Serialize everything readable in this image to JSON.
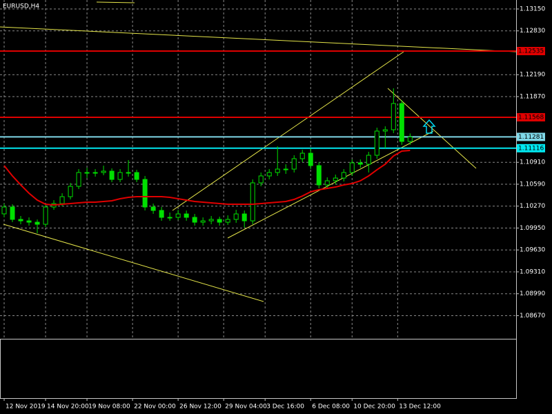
{
  "chart_data": {
    "type": "candlestick",
    "title": "EURUSD,H4",
    "open": [
      1.10157,
      1.10257,
      1.10076,
      1.10055,
      1.10035,
      1.10005,
      1.10257,
      1.10307,
      1.10408,
      1.10559,
      1.10761,
      1.10761,
      1.10761,
      1.10781,
      1.1066,
      1.10761,
      1.10761,
      1.1066,
      1.10257,
      1.10207,
      1.10106,
      1.10106,
      1.10156,
      1.10106,
      1.10035,
      1.10055,
      1.10076,
      1.10035,
      1.10076,
      1.10156,
      1.10055,
      1.1061,
      1.10711,
      1.10761,
      1.10811,
      1.10811,
      1.10963,
      1.11043,
      1.10862,
      1.1058,
      1.1064,
      1.1068,
      1.10761,
      1.10902,
      1.10882,
      1.11013,
      1.11366,
      1.11386,
      1.11769,
      1.11215
    ],
    "high": [
      1.10307,
      1.10297,
      1.10126,
      1.10105,
      1.10075,
      1.10297,
      1.10357,
      1.10458,
      1.10609,
      1.10811,
      1.10831,
      1.10811,
      1.10861,
      1.10821,
      1.10811,
      1.10943,
      1.10801,
      1.1071,
      1.10307,
      1.10257,
      1.10176,
      1.10216,
      1.10206,
      1.10156,
      1.10105,
      1.10126,
      1.10116,
      1.10136,
      1.10216,
      1.10206,
      1.1066,
      1.10761,
      1.10811,
      1.11144,
      1.10881,
      1.11013,
      1.11093,
      1.11114,
      1.10912,
      1.1069,
      1.1073,
      1.10811,
      1.10952,
      1.10952,
      1.11063,
      1.11416,
      1.11436,
      1.11991,
      1.11819,
      1.11331
    ],
    "low": [
      1.10107,
      1.10036,
      1.10005,
      1.09985,
      1.09874,
      1.09965,
      1.10217,
      1.10267,
      1.10368,
      1.10519,
      1.10681,
      1.10701,
      1.10721,
      1.1062,
      1.1062,
      1.10701,
      1.1062,
      1.10207,
      1.10157,
      1.10056,
      1.10056,
      1.10066,
      1.10056,
      1.09985,
      1.09985,
      1.10005,
      1.09985,
      1.09995,
      1.10026,
      1.09955,
      1.10005,
      1.1056,
      1.10661,
      1.10711,
      1.10741,
      1.10761,
      1.10913,
      1.10812,
      1.1053,
      1.1053,
      1.1059,
      1.1063,
      1.10711,
      1.10832,
      1.10762,
      1.10963,
      1.11116,
      1.11336,
      1.11165,
      1.11165
    ],
    "close": [
      1.10257,
      1.10076,
      1.10055,
      1.10035,
      1.10005,
      1.10257,
      1.10307,
      1.10408,
      1.10559,
      1.10761,
      1.10761,
      1.10761,
      1.10781,
      1.1066,
      1.10761,
      1.10761,
      1.1066,
      1.10257,
      1.10207,
      1.10106,
      1.10106,
      1.10156,
      1.10106,
      1.10035,
      1.10055,
      1.10076,
      1.10035,
      1.10076,
      1.10156,
      1.10055,
      1.1061,
      1.10711,
      1.10761,
      1.10811,
      1.10811,
      1.10963,
      1.11043,
      1.10862,
      1.1058,
      1.1064,
      1.1068,
      1.10761,
      1.10902,
      1.10882,
      1.11013,
      1.11366,
      1.11386,
      1.11769,
      1.11215,
      1.11281
    ],
    "color": "#00e000",
    "moving_average": {
      "color": "#e00000",
      "values": [
        1.10862,
        1.10711,
        1.1058,
        1.10459,
        1.10358,
        1.10297,
        1.10287,
        1.10297,
        1.10307,
        1.10318,
        1.10328,
        1.10328,
        1.10338,
        1.10348,
        1.10378,
        1.10398,
        1.10408,
        1.10408,
        1.10408,
        1.10408,
        1.10398,
        1.10378,
        1.10358,
        1.10338,
        1.10328,
        1.10318,
        1.10307,
        1.10297,
        1.10297,
        1.10297,
        1.10297,
        1.10307,
        1.10318,
        1.10328,
        1.10338,
        1.10368,
        1.10418,
        1.10479,
        1.10509,
        1.10529,
        1.10549,
        1.1058,
        1.106,
        1.1064,
        1.10711,
        1.10801,
        1.10882,
        1.11003,
        1.11074,
        1.11084
      ]
    },
    "levels": [
      {
        "value": 1.12535,
        "color": "#e00000"
      },
      {
        "value": 1.11568,
        "color": "#e00000"
      },
      {
        "value": 1.11281,
        "color": "#7fd8e8"
      },
      {
        "value": 1.11116,
        "color": "#00e8f0"
      }
    ],
    "xlim": [
      -0.5,
      61.8
    ],
    "xticks": [
      {
        "value": 0,
        "label": "12 Nov 2019"
      },
      {
        "value": 5,
        "label": "14 Nov 20:00"
      },
      {
        "value": 10,
        "label": "19 Nov 08:00"
      },
      {
        "value": 15.5,
        "label": "22 Nov 00:00"
      },
      {
        "value": 21,
        "label": "26 Nov 12:00"
      },
      {
        "value": 26.5,
        "label": "29 Nov 04:00"
      },
      {
        "value": 31.5,
        "label": "3 Dec 16:00"
      },
      {
        "value": 37,
        "label": "6 Dec 08:00"
      },
      {
        "value": 42,
        "label": "10 Dec 20:00"
      },
      {
        "value": 47.5,
        "label": "13 Dec 12:00"
      }
    ],
    "ylim": [
      1.08332,
      1.13281
    ],
    "yticks": [
      {
        "value": 1.1315,
        "label": "1.13150"
      },
      {
        "value": 1.1283,
        "label": "1.12830"
      },
      {
        "value": 1.1219,
        "label": "1.12190"
      },
      {
        "value": 1.1187,
        "label": "1.11870"
      },
      {
        "value": 1.1091,
        "label": "1.10910"
      },
      {
        "value": 1.1059,
        "label": "1.10590"
      },
      {
        "value": 1.1027,
        "label": "1.10270"
      },
      {
        "value": 1.0995,
        "label": "1.09950"
      },
      {
        "value": 1.0963,
        "label": "1.09630"
      },
      {
        "value": 1.0931,
        "label": "1.09310"
      },
      {
        "value": 1.0899,
        "label": "1.08990"
      },
      {
        "value": 1.0867,
        "label": "1.08670"
      }
    ],
    "grid": true
  }
}
